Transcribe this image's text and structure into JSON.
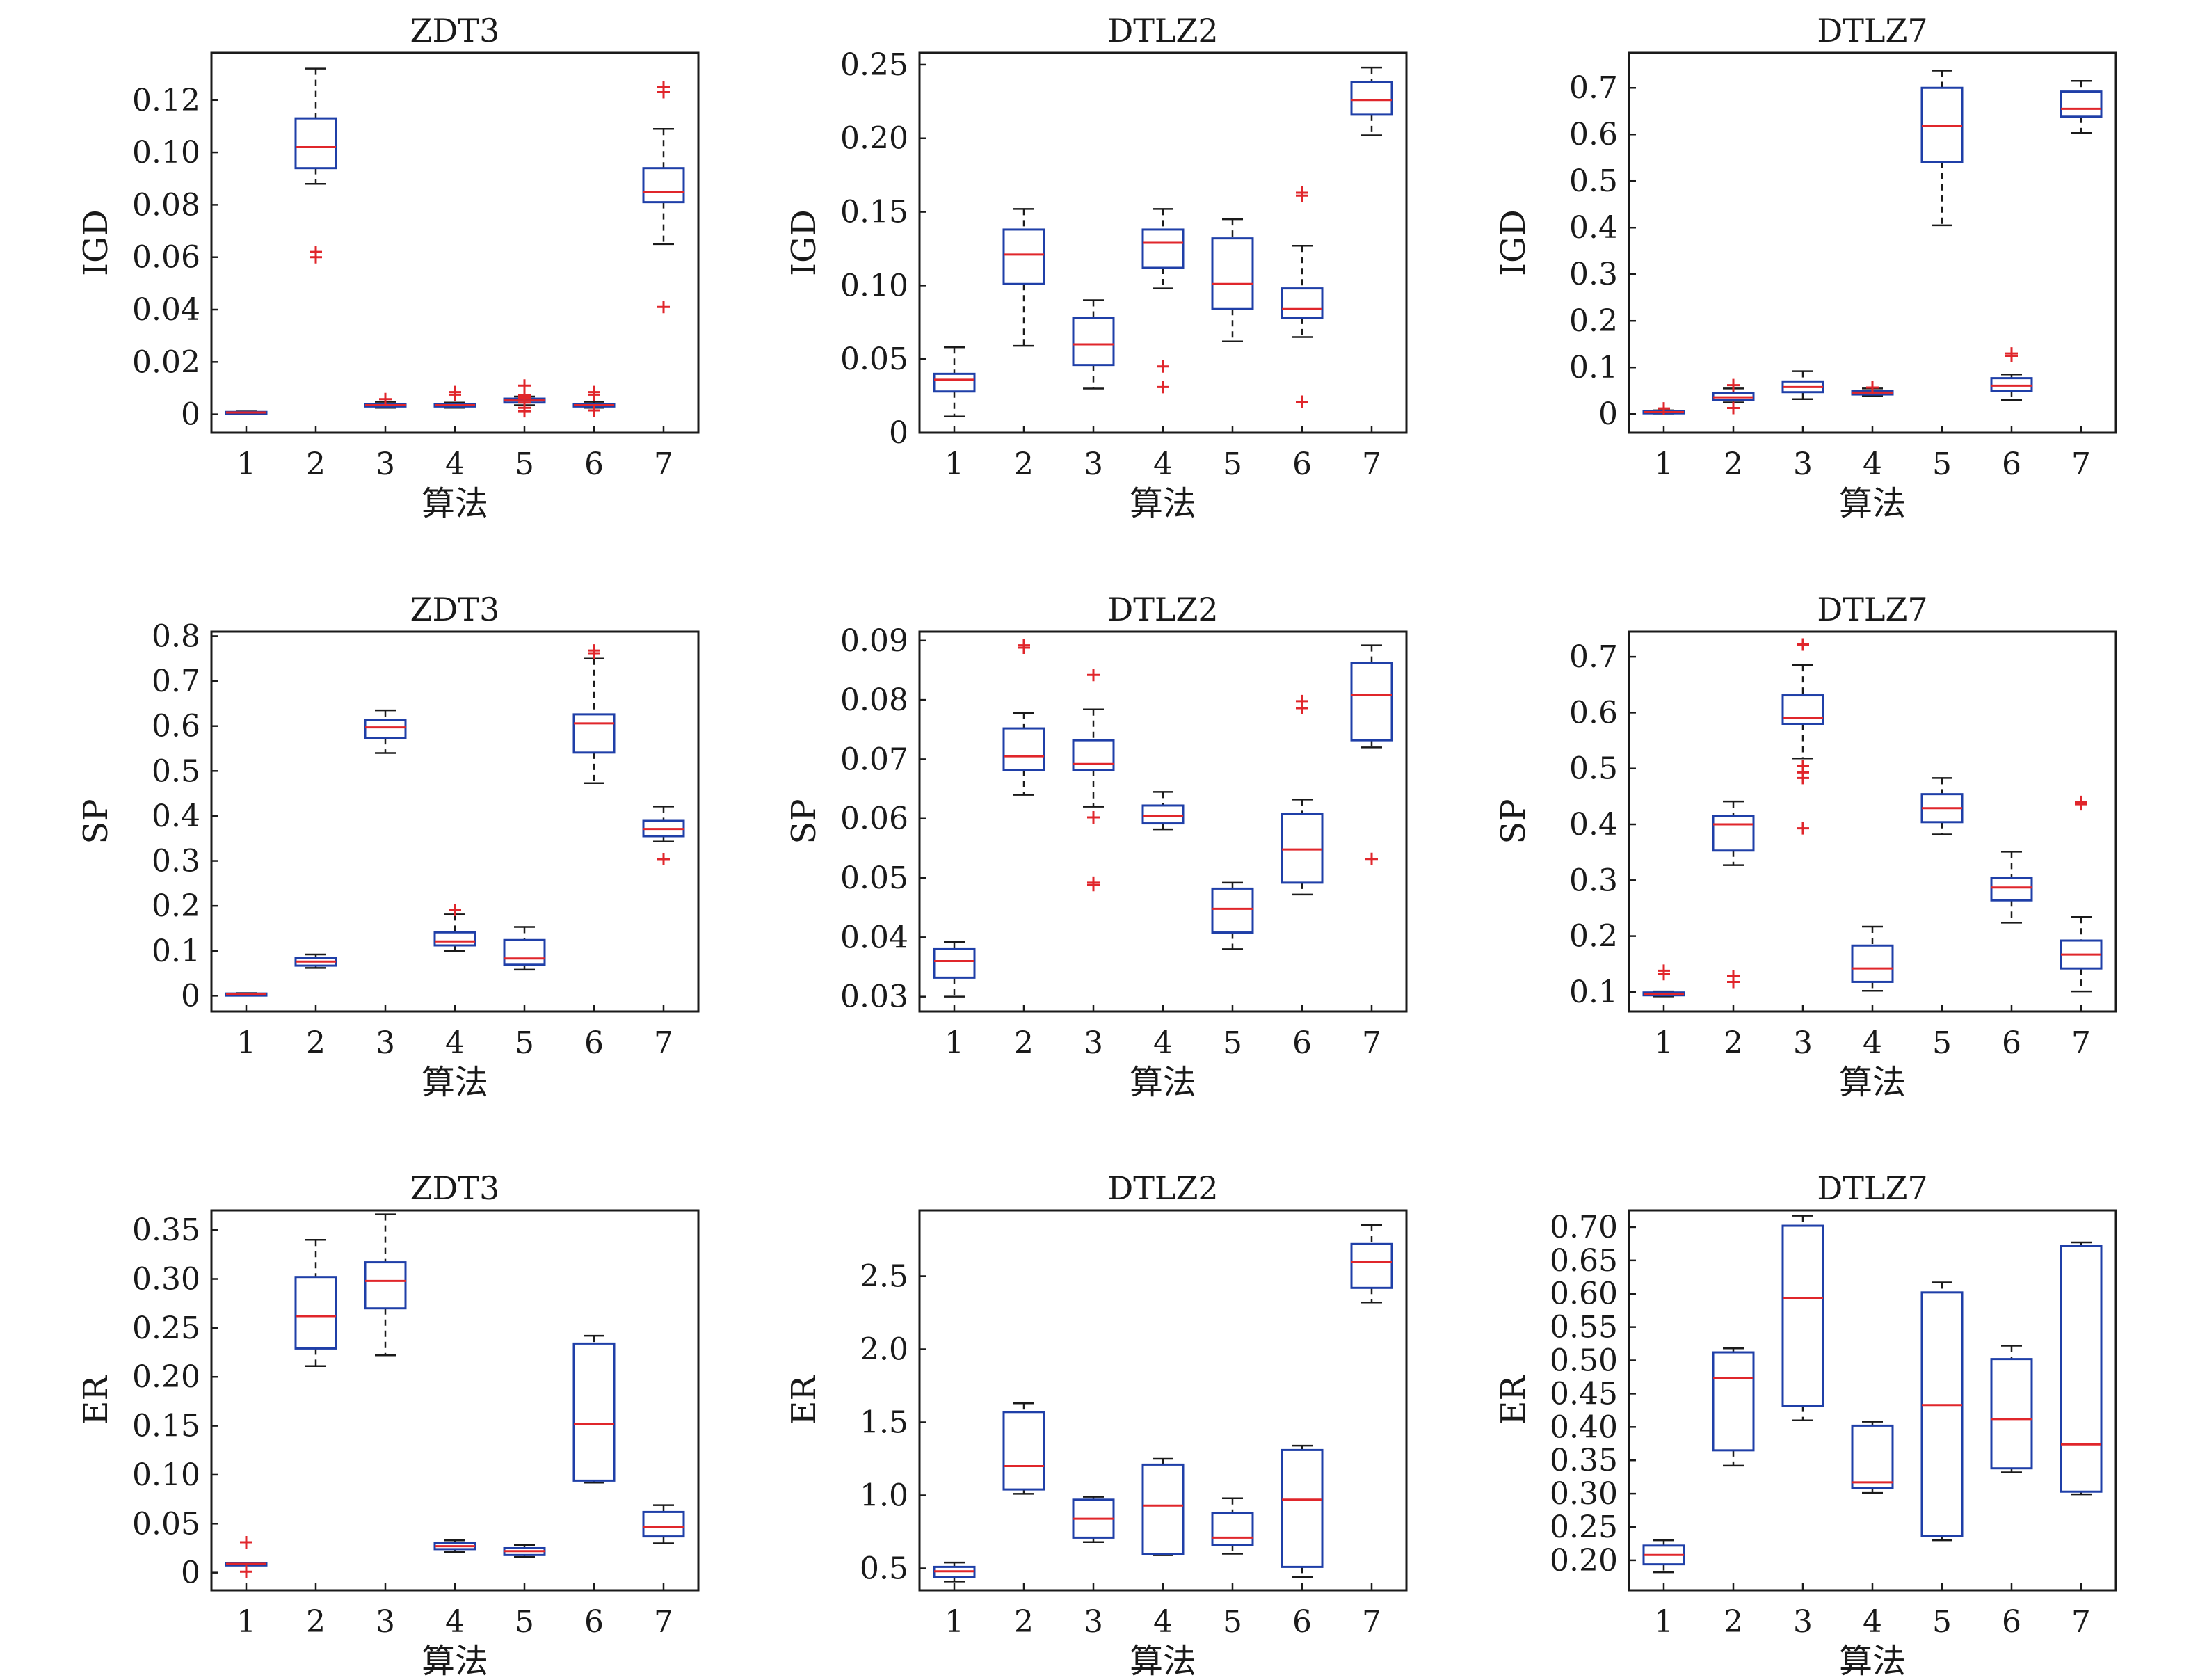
{
  "figure": {
    "xlabel": "算法"
  },
  "colors": {
    "box": "#1f3fa8",
    "median": "#e0262b",
    "whisker": "#1a1a1a",
    "outlier": "#e0262b",
    "axis": "#1a1a1a"
  },
  "chart_data": [
    {
      "type": "box",
      "title": "ZDT3",
      "xlabel": "算法",
      "ylabel": "IGD",
      "categories": [
        "1",
        "2",
        "3",
        "4",
        "5",
        "6",
        "7"
      ],
      "ylim": [
        -0.007,
        0.138
      ],
      "yticks": [
        0,
        0.02,
        0.04,
        0.06,
        0.08,
        0.1,
        0.12
      ],
      "ytick_labels": [
        "0",
        "0.02",
        "0.04",
        "0.06",
        "0.08",
        "0.10",
        "0.12"
      ],
      "boxes": [
        {
          "min": 0.0002,
          "q1": 0.0005,
          "median": 0.0007,
          "q3": 0.0009,
          "max": 0.0011,
          "outliers": []
        },
        {
          "min": 0.088,
          "q1": 0.094,
          "median": 0.102,
          "q3": 0.113,
          "max": 0.132,
          "outliers": [
            0.06,
            0.062
          ]
        },
        {
          "min": 0.0025,
          "q1": 0.003,
          "median": 0.0035,
          "q3": 0.004,
          "max": 0.0048,
          "outliers": [
            0.0058
          ]
        },
        {
          "min": 0.0025,
          "q1": 0.003,
          "median": 0.0035,
          "q3": 0.004,
          "max": 0.0045,
          "outliers": [
            0.0075,
            0.0085
          ]
        },
        {
          "min": 0.0035,
          "q1": 0.0045,
          "median": 0.0053,
          "q3": 0.006,
          "max": 0.0068,
          "outliers": [
            0.0012,
            0.0025,
            0.0045,
            0.0062,
            0.0072,
            0.011
          ]
        },
        {
          "min": 0.0025,
          "q1": 0.003,
          "median": 0.0035,
          "q3": 0.004,
          "max": 0.0048,
          "outliers": [
            0.0015,
            0.0075,
            0.0085
          ]
        },
        {
          "min": 0.065,
          "q1": 0.081,
          "median": 0.085,
          "q3": 0.094,
          "max": 0.109,
          "outliers": [
            0.041,
            0.123,
            0.125
          ]
        }
      ]
    },
    {
      "type": "box",
      "title": "DTLZ2",
      "xlabel": "算法",
      "ylabel": "IGD",
      "categories": [
        "1",
        "2",
        "3",
        "4",
        "5",
        "6",
        "7"
      ],
      "ylim": [
        0,
        0.258
      ],
      "yticks": [
        0,
        0.05,
        0.1,
        0.15,
        0.2,
        0.25
      ],
      "ytick_labels": [
        "0",
        "0.05",
        "0.10",
        "0.15",
        "0.20",
        "0.25"
      ],
      "boxes": [
        {
          "min": 0.011,
          "q1": 0.028,
          "median": 0.036,
          "q3": 0.04,
          "max": 0.058,
          "outliers": []
        },
        {
          "min": 0.059,
          "q1": 0.101,
          "median": 0.121,
          "q3": 0.138,
          "max": 0.152,
          "outliers": []
        },
        {
          "min": 0.03,
          "q1": 0.046,
          "median": 0.06,
          "q3": 0.078,
          "max": 0.09,
          "outliers": []
        },
        {
          "min": 0.098,
          "q1": 0.112,
          "median": 0.129,
          "q3": 0.138,
          "max": 0.152,
          "outliers": [
            0.031,
            0.045
          ]
        },
        {
          "min": 0.062,
          "q1": 0.084,
          "median": 0.101,
          "q3": 0.132,
          "max": 0.145,
          "outliers": []
        },
        {
          "min": 0.065,
          "q1": 0.078,
          "median": 0.084,
          "q3": 0.098,
          "max": 0.127,
          "outliers": [
            0.021,
            0.161,
            0.163
          ]
        },
        {
          "min": 0.202,
          "q1": 0.216,
          "median": 0.226,
          "q3": 0.238,
          "max": 0.248,
          "outliers": []
        }
      ]
    },
    {
      "type": "box",
      "title": "DTLZ7",
      "xlabel": "算法",
      "ylabel": "IGD",
      "categories": [
        "1",
        "2",
        "3",
        "4",
        "5",
        "6",
        "7"
      ],
      "ylim": [
        -0.04,
        0.775
      ],
      "yticks": [
        0,
        0.1,
        0.2,
        0.3,
        0.4,
        0.5,
        0.6,
        0.7
      ],
      "ytick_labels": [
        "0",
        "0.1",
        "0.2",
        "0.3",
        "0.4",
        "0.5",
        "0.6",
        "0.7"
      ],
      "boxes": [
        {
          "min": 0.001,
          "q1": 0.002,
          "median": 0.004,
          "q3": 0.006,
          "max": 0.008,
          "outliers": [
            0.012
          ]
        },
        {
          "min": 0.025,
          "q1": 0.03,
          "median": 0.036,
          "q3": 0.045,
          "max": 0.055,
          "outliers": [
            0.013,
            0.062
          ]
        },
        {
          "min": 0.032,
          "q1": 0.047,
          "median": 0.058,
          "q3": 0.07,
          "max": 0.092,
          "outliers": []
        },
        {
          "min": 0.038,
          "q1": 0.042,
          "median": 0.046,
          "q3": 0.05,
          "max": 0.055,
          "outliers": [
            0.057
          ]
        },
        {
          "min": 0.405,
          "q1": 0.541,
          "median": 0.619,
          "q3": 0.7,
          "max": 0.737,
          "outliers": []
        },
        {
          "min": 0.03,
          "q1": 0.05,
          "median": 0.061,
          "q3": 0.077,
          "max": 0.085,
          "outliers": [
            0.125,
            0.13
          ]
        },
        {
          "min": 0.603,
          "q1": 0.638,
          "median": 0.655,
          "q3": 0.692,
          "max": 0.715,
          "outliers": []
        }
      ]
    },
    {
      "type": "box",
      "title": "ZDT3",
      "xlabel": "算法",
      "ylabel": "SP",
      "categories": [
        "1",
        "2",
        "3",
        "4",
        "5",
        "6",
        "7"
      ],
      "ylim": [
        -0.035,
        0.81
      ],
      "yticks": [
        0,
        0.1,
        0.2,
        0.3,
        0.4,
        0.5,
        0.6,
        0.7,
        0.8
      ],
      "ytick_labels": [
        "0",
        "0.1",
        "0.2",
        "0.3",
        "0.4",
        "0.5",
        "0.6",
        "0.7",
        "0.8"
      ],
      "boxes": [
        {
          "min": 0.002,
          "q1": 0.003,
          "median": 0.004,
          "q3": 0.005,
          "max": 0.006,
          "outliers": []
        },
        {
          "min": 0.062,
          "q1": 0.067,
          "median": 0.076,
          "q3": 0.084,
          "max": 0.092,
          "outliers": []
        },
        {
          "min": 0.54,
          "q1": 0.573,
          "median": 0.597,
          "q3": 0.614,
          "max": 0.635,
          "outliers": []
        },
        {
          "min": 0.1,
          "q1": 0.112,
          "median": 0.121,
          "q3": 0.141,
          "max": 0.181,
          "outliers": [
            0.191
          ]
        },
        {
          "min": 0.058,
          "q1": 0.069,
          "median": 0.083,
          "q3": 0.124,
          "max": 0.153,
          "outliers": []
        },
        {
          "min": 0.473,
          "q1": 0.541,
          "median": 0.606,
          "q3": 0.626,
          "max": 0.75,
          "outliers": [
            0.762,
            0.768
          ]
        },
        {
          "min": 0.343,
          "q1": 0.355,
          "median": 0.371,
          "q3": 0.389,
          "max": 0.421,
          "outliers": [
            0.304
          ]
        }
      ]
    },
    {
      "type": "box",
      "title": "DTLZ2",
      "xlabel": "算法",
      "ylabel": "SP",
      "categories": [
        "1",
        "2",
        "3",
        "4",
        "5",
        "6",
        "7"
      ],
      "ylim": [
        0.0275,
        0.0915
      ],
      "yticks": [
        0.03,
        0.04,
        0.05,
        0.06,
        0.07,
        0.08,
        0.09
      ],
      "ytick_labels": [
        "0.03",
        "0.04",
        "0.05",
        "0.06",
        "0.07",
        "0.08",
        "0.09"
      ],
      "boxes": [
        {
          "min": 0.03,
          "q1": 0.0332,
          "median": 0.036,
          "q3": 0.038,
          "max": 0.0392,
          "outliers": []
        },
        {
          "min": 0.064,
          "q1": 0.0682,
          "median": 0.0705,
          "q3": 0.0752,
          "max": 0.0778,
          "outliers": [
            0.0888,
            0.0892
          ]
        },
        {
          "min": 0.062,
          "q1": 0.0682,
          "median": 0.0692,
          "q3": 0.0732,
          "max": 0.0784,
          "outliers": [
            0.0488,
            0.0492,
            0.0602,
            0.0842
          ]
        },
        {
          "min": 0.0582,
          "q1": 0.0592,
          "median": 0.0605,
          "q3": 0.0622,
          "max": 0.0645,
          "outliers": []
        },
        {
          "min": 0.038,
          "q1": 0.0408,
          "median": 0.0448,
          "q3": 0.0482,
          "max": 0.0492,
          "outliers": []
        },
        {
          "min": 0.0472,
          "q1": 0.0492,
          "median": 0.0548,
          "q3": 0.0608,
          "max": 0.0632,
          "outliers": [
            0.0786,
            0.0798
          ]
        },
        {
          "min": 0.072,
          "q1": 0.0732,
          "median": 0.0808,
          "q3": 0.0862,
          "max": 0.0892,
          "outliers": [
            0.0532
          ]
        }
      ]
    },
    {
      "type": "box",
      "title": "DTLZ7",
      "xlabel": "算法",
      "ylabel": "SP",
      "categories": [
        "1",
        "2",
        "3",
        "4",
        "5",
        "6",
        "7"
      ],
      "ylim": [
        0.065,
        0.745
      ],
      "yticks": [
        0.1,
        0.2,
        0.3,
        0.4,
        0.5,
        0.6,
        0.7
      ],
      "ytick_labels": [
        "0.1",
        "0.2",
        "0.3",
        "0.4",
        "0.5",
        "0.6",
        "0.7"
      ],
      "boxes": [
        {
          "min": 0.092,
          "q1": 0.094,
          "median": 0.096,
          "q3": 0.099,
          "max": 0.101,
          "outliers": [
            0.132,
            0.138
          ]
        },
        {
          "min": 0.327,
          "q1": 0.353,
          "median": 0.4,
          "q3": 0.415,
          "max": 0.441,
          "outliers": [
            0.118,
            0.128
          ]
        },
        {
          "min": 0.518,
          "q1": 0.58,
          "median": 0.591,
          "q3": 0.631,
          "max": 0.685,
          "outliers": [
            0.393,
            0.483,
            0.493,
            0.504,
            0.722
          ]
        },
        {
          "min": 0.102,
          "q1": 0.118,
          "median": 0.142,
          "q3": 0.183,
          "max": 0.217,
          "outliers": []
        },
        {
          "min": 0.382,
          "q1": 0.404,
          "median": 0.429,
          "q3": 0.454,
          "max": 0.483,
          "outliers": []
        },
        {
          "min": 0.224,
          "q1": 0.264,
          "median": 0.287,
          "q3": 0.304,
          "max": 0.351,
          "outliers": []
        },
        {
          "min": 0.101,
          "q1": 0.142,
          "median": 0.167,
          "q3": 0.192,
          "max": 0.234,
          "outliers": [
            0.436,
            0.44
          ]
        }
      ]
    },
    {
      "type": "box",
      "title": "ZDT3",
      "xlabel": "算法",
      "ylabel": "ER",
      "categories": [
        "1",
        "2",
        "3",
        "4",
        "5",
        "6",
        "7"
      ],
      "ylim": [
        -0.018,
        0.37
      ],
      "yticks": [
        0,
        0.05,
        0.1,
        0.15,
        0.2,
        0.25,
        0.3,
        0.35
      ],
      "ytick_labels": [
        "0",
        "0.05",
        "0.10",
        "0.15",
        "0.20",
        "0.25",
        "0.30",
        "0.35"
      ],
      "boxes": [
        {
          "min": 0.008,
          "q1": 0.0085,
          "median": 0.009,
          "q3": 0.0095,
          "max": 0.01,
          "outliers": [
            0.001,
            0.031
          ]
        },
        {
          "min": 0.211,
          "q1": 0.229,
          "median": 0.262,
          "q3": 0.302,
          "max": 0.34,
          "outliers": []
        },
        {
          "min": 0.222,
          "q1": 0.27,
          "median": 0.298,
          "q3": 0.317,
          "max": 0.366,
          "outliers": []
        },
        {
          "min": 0.021,
          "q1": 0.024,
          "median": 0.027,
          "q3": 0.03,
          "max": 0.033,
          "outliers": []
        },
        {
          "min": 0.016,
          "q1": 0.018,
          "median": 0.022,
          "q3": 0.025,
          "max": 0.028,
          "outliers": []
        },
        {
          "min": 0.092,
          "q1": 0.094,
          "median": 0.152,
          "q3": 0.234,
          "max": 0.242,
          "outliers": []
        },
        {
          "min": 0.03,
          "q1": 0.037,
          "median": 0.047,
          "q3": 0.062,
          "max": 0.069,
          "outliers": []
        }
      ]
    },
    {
      "type": "box",
      "title": "DTLZ2",
      "xlabel": "算法",
      "ylabel": "ER",
      "categories": [
        "1",
        "2",
        "3",
        "4",
        "5",
        "6",
        "7"
      ],
      "ylim": [
        0.35,
        2.95
      ],
      "yticks": [
        0.5,
        1.0,
        1.5,
        2.0,
        2.5
      ],
      "ytick_labels": [
        "0.5",
        "1.0",
        "1.5",
        "2.0",
        "2.5"
      ],
      "boxes": [
        {
          "min": 0.41,
          "q1": 0.44,
          "median": 0.48,
          "q3": 0.51,
          "max": 0.54,
          "outliers": []
        },
        {
          "min": 1.01,
          "q1": 1.04,
          "median": 1.2,
          "q3": 1.57,
          "max": 1.63,
          "outliers": []
        },
        {
          "min": 0.68,
          "q1": 0.71,
          "median": 0.84,
          "q3": 0.97,
          "max": 0.99,
          "outliers": []
        },
        {
          "min": 0.59,
          "q1": 0.6,
          "median": 0.93,
          "q3": 1.21,
          "max": 1.25,
          "outliers": []
        },
        {
          "min": 0.6,
          "q1": 0.66,
          "median": 0.71,
          "q3": 0.88,
          "max": 0.98,
          "outliers": []
        },
        {
          "min": 0.44,
          "q1": 0.51,
          "median": 0.97,
          "q3": 1.31,
          "max": 1.34,
          "outliers": []
        },
        {
          "min": 2.32,
          "q1": 2.42,
          "median": 2.6,
          "q3": 2.72,
          "max": 2.85,
          "outliers": []
        }
      ]
    },
    {
      "type": "box",
      "title": "DTLZ7",
      "xlabel": "算法",
      "ylabel": "ER",
      "categories": [
        "1",
        "2",
        "3",
        "4",
        "5",
        "6",
        "7"
      ],
      "ylim": [
        0.155,
        0.725
      ],
      "yticks": [
        0.2,
        0.25,
        0.3,
        0.35,
        0.4,
        0.45,
        0.5,
        0.55,
        0.6,
        0.65,
        0.7
      ],
      "ytick_labels": [
        "0.20",
        "0.25",
        "0.30",
        "0.35",
        "0.40",
        "0.45",
        "0.50",
        "0.55",
        "0.60",
        "0.65",
        "0.70"
      ],
      "boxes": [
        {
          "min": 0.182,
          "q1": 0.194,
          "median": 0.208,
          "q3": 0.222,
          "max": 0.23,
          "outliers": []
        },
        {
          "min": 0.342,
          "q1": 0.365,
          "median": 0.473,
          "q3": 0.512,
          "max": 0.518,
          "outliers": []
        },
        {
          "min": 0.41,
          "q1": 0.432,
          "median": 0.594,
          "q3": 0.702,
          "max": 0.717,
          "outliers": []
        },
        {
          "min": 0.301,
          "q1": 0.308,
          "median": 0.317,
          "q3": 0.402,
          "max": 0.408,
          "outliers": []
        },
        {
          "min": 0.23,
          "q1": 0.236,
          "median": 0.433,
          "q3": 0.602,
          "max": 0.617,
          "outliers": []
        },
        {
          "min": 0.332,
          "q1": 0.338,
          "median": 0.412,
          "q3": 0.502,
          "max": 0.522,
          "outliers": []
        },
        {
          "min": 0.299,
          "q1": 0.303,
          "median": 0.374,
          "q3": 0.672,
          "max": 0.677,
          "outliers": []
        }
      ]
    }
  ]
}
